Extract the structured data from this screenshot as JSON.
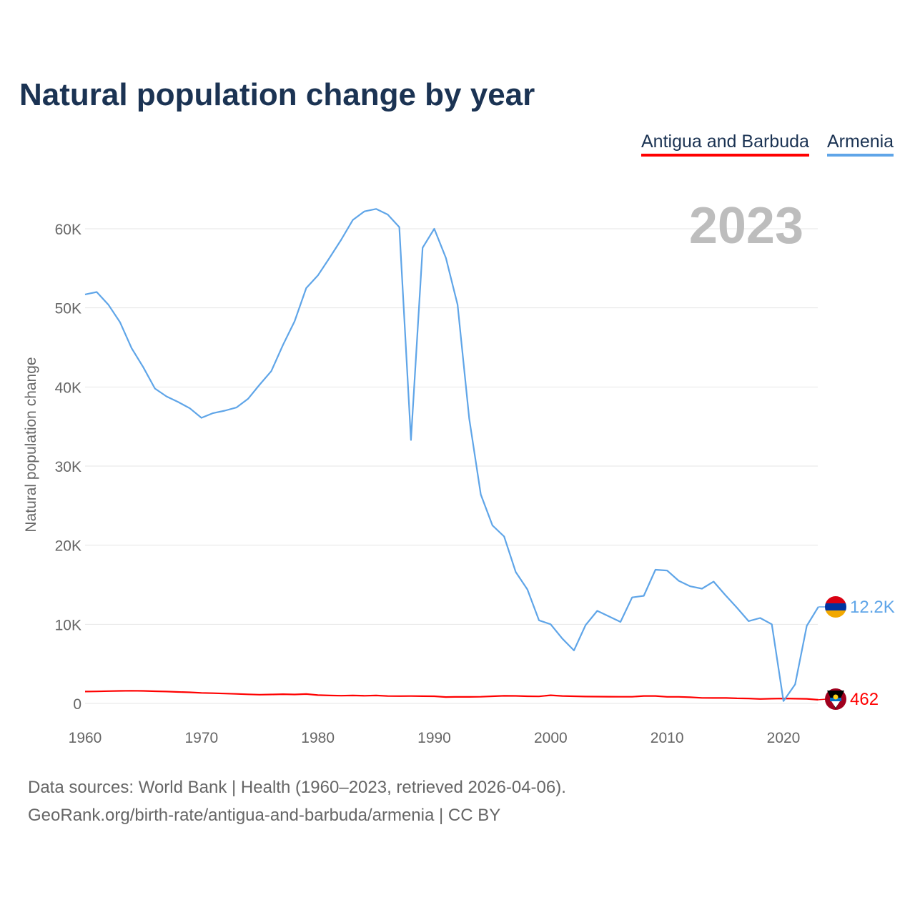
{
  "chart_data": {
    "type": "line",
    "title": "Natural population change by year",
    "xlabel": "",
    "ylabel": "Natural population change",
    "year_label": "2023",
    "xlim": [
      1960,
      2023
    ],
    "ylim": [
      0,
      65000
    ],
    "x_ticks": [
      1960,
      1970,
      1980,
      1990,
      2000,
      2010,
      2020
    ],
    "x_tick_labels": [
      "1960",
      "1970",
      "1980",
      "1990",
      "2000",
      "2010",
      "2020"
    ],
    "y_ticks": [
      0,
      10000,
      20000,
      30000,
      40000,
      50000,
      60000
    ],
    "y_tick_labels": [
      "0",
      "10K",
      "20K",
      "30K",
      "40K",
      "50K",
      "60K"
    ],
    "grid": true,
    "legend_position": "top-right",
    "series": [
      {
        "name": "Antigua and Barbuda",
        "color": "#ff0000",
        "end_label": "462",
        "values": [
          1500,
          1520,
          1550,
          1580,
          1600,
          1580,
          1540,
          1500,
          1450,
          1400,
          1330,
          1290,
          1250,
          1200,
          1150,
          1100,
          1130,
          1170,
          1130,
          1180,
          1050,
          1000,
          980,
          1000,
          970,
          1000,
          930,
          920,
          930,
          910,
          900,
          800,
          830,
          820,
          840,
          900,
          960,
          950,
          900,
          890,
          1030,
          940,
          900,
          870,
          860,
          850,
          840,
          840,
          940,
          940,
          830,
          830,
          780,
          700,
          690,
          700,
          640,
          620,
          560,
          600,
          620,
          600,
          580,
          462
        ]
      },
      {
        "name": "Armenia",
        "color": "#5fa5e8",
        "end_label": "12.2K",
        "values": [
          51700,
          52000,
          50400,
          48200,
          44900,
          42500,
          39800,
          38800,
          38100,
          37300,
          36100,
          36700,
          37000,
          37400,
          38500,
          40300,
          42000,
          45300,
          48300,
          52500,
          54100,
          56300,
          58600,
          61100,
          62200,
          62500,
          61800,
          60200,
          33300,
          57600,
          60000,
          56300,
          50400,
          36000,
          26400,
          22500,
          21100,
          16600,
          14400,
          10500,
          10000,
          8200,
          6700,
          9900,
          11700,
          11000,
          10300,
          13400,
          13600,
          16900,
          16800,
          15500,
          14800,
          14500,
          15400,
          13700,
          12100,
          10400,
          10800,
          10000,
          300,
          2400,
          9800,
          12200
        ]
      }
    ]
  },
  "sources": {
    "line1": "Data sources: World Bank | Health (1960–2023, retrieved 2026-04-06).",
    "line2": "GeoRank.org/birth-rate/antigua-and-barbuda/armenia | CC BY"
  }
}
